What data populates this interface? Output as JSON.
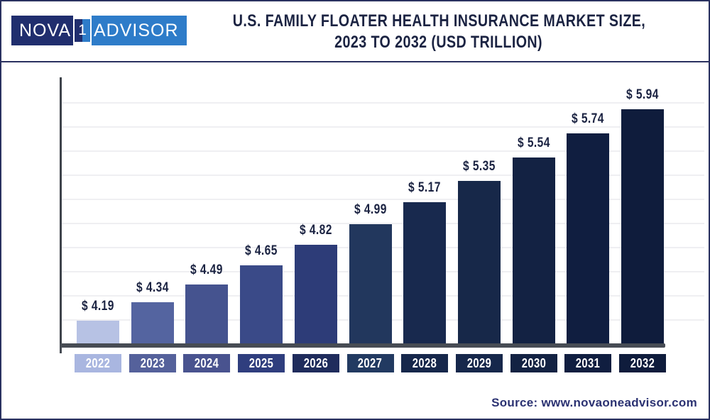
{
  "header": {
    "logo": {
      "part1": "NOVA",
      "box_char": "1",
      "part2": "ADVISOR",
      "navy_color": "#202e6e",
      "blue_color": "#2e7cc9"
    },
    "title_line1": "U.S. FAMILY FLOATER HEALTH INSURANCE MARKET SIZE,",
    "title_line2": "2023 TO 2032 (USD TRILLION)"
  },
  "chart_data": {
    "type": "bar",
    "title": "U.S. Family Floater Health Insurance Market Size, 2023 to 2032 (USD Trillion)",
    "unit": "USD Trillion",
    "categories": [
      "2022",
      "2023",
      "2024",
      "2025",
      "2026",
      "2027",
      "2028",
      "2029",
      "2030",
      "2031",
      "2032"
    ],
    "values": [
      4.19,
      4.34,
      4.49,
      4.65,
      4.82,
      4.99,
      5.17,
      5.35,
      5.54,
      5.74,
      5.94
    ],
    "value_labels": [
      "$ 4.19",
      "$ 4.34",
      "$ 4.49",
      "$ 4.65",
      "$ 4.82",
      "$ 4.99",
      "$ 5.17",
      "$ 5.35",
      "$ 5.54",
      "$ 5.74",
      "$ 5.94"
    ],
    "bar_colors": [
      "#b7c2e4",
      "#5464a0",
      "#45538f",
      "#3a4a88",
      "#2d3c78",
      "#22375d",
      "#18294e",
      "#172849",
      "#132243",
      "#101e40",
      "#0f1c3c"
    ],
    "year_label_colors": [
      "#a9b6e0",
      "#55619b",
      "#49538f",
      "#2f3e7e",
      "#1f2c5c",
      "#223a61",
      "#16274b",
      "#16274b",
      "#132243",
      "#101e40",
      "#0f1c3c"
    ],
    "ylim": [
      4.0,
      6.1
    ],
    "gridline_step": 0.2,
    "grid": true,
    "legend": "none",
    "xlabel": "",
    "ylabel": ""
  },
  "footer": {
    "source": "Source: www.novaoneadvisor.com"
  }
}
